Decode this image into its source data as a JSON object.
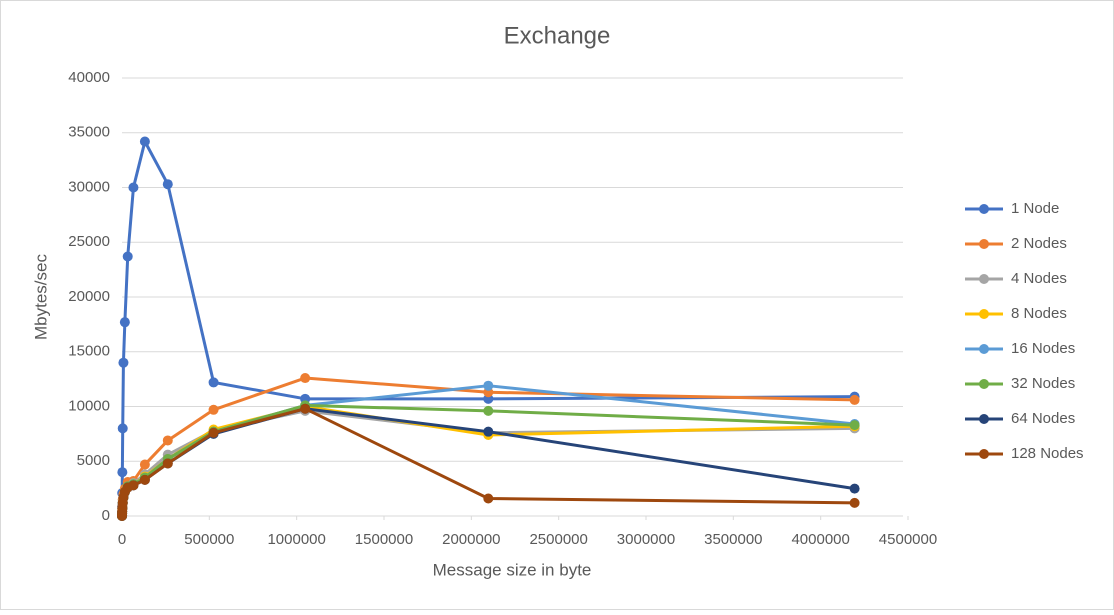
{
  "chart_data": {
    "type": "line",
    "title": "Exchange",
    "x_label": "Message size in byte",
    "y_label": "Mbytes/sec",
    "x": [
      0,
      256,
      512,
      1024,
      2048,
      4096,
      8192,
      16384,
      32768,
      65536,
      131072,
      262144,
      524288,
      1048576,
      2097152,
      4194304
    ],
    "series": [
      {
        "name": "1 Node",
        "color": "#4472c4",
        "values": [
          0,
          400,
          900,
          2100,
          4000,
          8000,
          14000,
          17700,
          23700,
          30000,
          34200,
          30300,
          12200,
          10700,
          10700,
          10900
        ]
      },
      {
        "name": "2 Nodes",
        "color": "#ed7d31",
        "values": [
          0,
          100,
          250,
          500,
          900,
          1500,
          2000,
          2500,
          3100,
          3200,
          4700,
          6900,
          9700,
          12600,
          11300,
          10600
        ]
      },
      {
        "name": "4 Nodes",
        "color": "#a5a5a5",
        "values": [
          0,
          80,
          200,
          400,
          700,
          1200,
          1700,
          2200,
          2700,
          3000,
          3800,
          5600,
          7800,
          9600,
          7600,
          8000
        ]
      },
      {
        "name": "8 Nodes",
        "color": "#ffc000",
        "values": [
          0,
          80,
          200,
          400,
          700,
          1200,
          1700,
          2200,
          2700,
          2900,
          3600,
          5200,
          7900,
          10000,
          7400,
          8200
        ]
      },
      {
        "name": "16 Nodes",
        "color": "#5b9bd5",
        "values": [
          0,
          80,
          200,
          400,
          700,
          1200,
          1700,
          2200,
          2700,
          2900,
          3500,
          5200,
          7700,
          10100,
          11900,
          8400
        ]
      },
      {
        "name": "32 Nodes",
        "color": "#70ad47",
        "values": [
          0,
          80,
          200,
          400,
          700,
          1200,
          1700,
          2200,
          2700,
          2900,
          3500,
          5200,
          7700,
          10100,
          9600,
          8300
        ]
      },
      {
        "name": "64 Nodes",
        "color": "#264478",
        "values": [
          0,
          80,
          200,
          400,
          700,
          1200,
          1700,
          2200,
          2600,
          2800,
          3300,
          4800,
          7500,
          9800,
          7700,
          2500
        ]
      },
      {
        "name": "128 Nodes",
        "color": "#9e480e",
        "values": [
          0,
          80,
          200,
          400,
          700,
          1200,
          1700,
          2200,
          2600,
          2800,
          3300,
          4800,
          7600,
          9800,
          1600,
          1200
        ]
      }
    ],
    "xlim": [
      0,
      4500000
    ],
    "xticks": [
      0,
      500000,
      1000000,
      1500000,
      2000000,
      2500000,
      3000000,
      3500000,
      4000000,
      4500000
    ],
    "ylim": [
      0,
      40000
    ],
    "yticks": [
      0,
      5000,
      10000,
      15000,
      20000,
      25000,
      30000,
      35000,
      40000
    ],
    "grid": true,
    "legend": "right"
  }
}
